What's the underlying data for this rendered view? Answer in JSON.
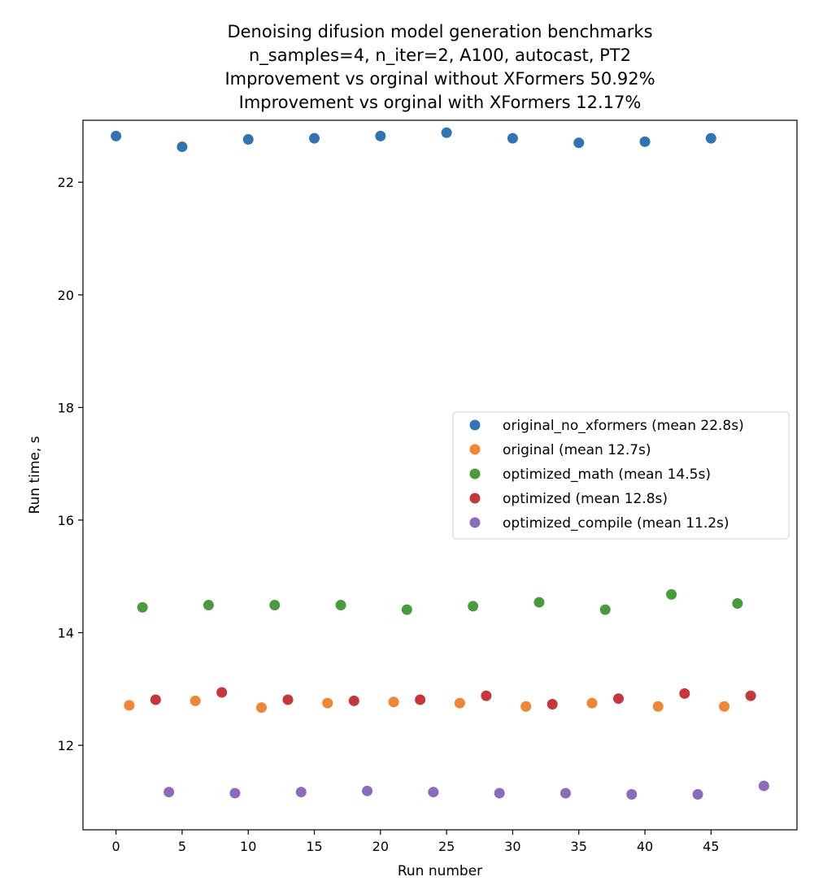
{
  "chart_data": {
    "type": "scatter",
    "title_lines": [
      "Denoising difusion model generation benchmarks",
      "n_samples=4, n_iter=2, A100, autocast, PT2",
      "Improvement vs orginal without XFormers 50.92%",
      "Improvement vs orginal with XFormers 12.17%"
    ],
    "xlabel": "Run number",
    "ylabel": "Run time, s",
    "xlim": [
      -2.5,
      51.5
    ],
    "ylim": [
      10.5,
      23.1
    ],
    "xticks": [
      0,
      5,
      10,
      15,
      20,
      25,
      30,
      35,
      40,
      45
    ],
    "yticks": [
      12,
      14,
      16,
      18,
      20,
      22
    ],
    "grid": false,
    "legend_position": "center-right",
    "series": [
      {
        "name": "original_no_xformers (mean 22.8s)",
        "color": "#3274b3",
        "x": [
          0,
          5,
          10,
          15,
          20,
          25,
          30,
          35,
          40,
          45
        ],
        "y": [
          22.82,
          22.63,
          22.76,
          22.78,
          22.82,
          22.88,
          22.78,
          22.7,
          22.72,
          22.78
        ]
      },
      {
        "name": "original (mean 12.7s)",
        "color": "#ef8636",
        "x": [
          1,
          6,
          11,
          16,
          21,
          26,
          31,
          36,
          41,
          46
        ],
        "y": [
          12.71,
          12.79,
          12.67,
          12.75,
          12.77,
          12.75,
          12.69,
          12.75,
          12.69,
          12.69
        ]
      },
      {
        "name": "optimized_math (mean 14.5s)",
        "color": "#4a9b3e",
        "x": [
          2,
          7,
          12,
          17,
          22,
          27,
          32,
          37,
          42,
          47
        ],
        "y": [
          14.45,
          14.49,
          14.49,
          14.49,
          14.41,
          14.47,
          14.54,
          14.41,
          14.68,
          14.52
        ]
      },
      {
        "name": "optimized (mean 12.8s)",
        "color": "#c5373a",
        "x": [
          3,
          8,
          13,
          18,
          23,
          28,
          33,
          38,
          43,
          48
        ],
        "y": [
          12.81,
          12.94,
          12.81,
          12.79,
          12.81,
          12.88,
          12.73,
          12.83,
          12.92,
          12.88
        ]
      },
      {
        "name": "optimized_compile (mean 11.2s)",
        "color": "#8c6bbd",
        "x": [
          4,
          9,
          14,
          19,
          24,
          29,
          34,
          39,
          44,
          49
        ],
        "y": [
          11.17,
          11.15,
          11.17,
          11.19,
          11.17,
          11.15,
          11.15,
          11.13,
          11.13,
          11.28
        ]
      }
    ]
  }
}
